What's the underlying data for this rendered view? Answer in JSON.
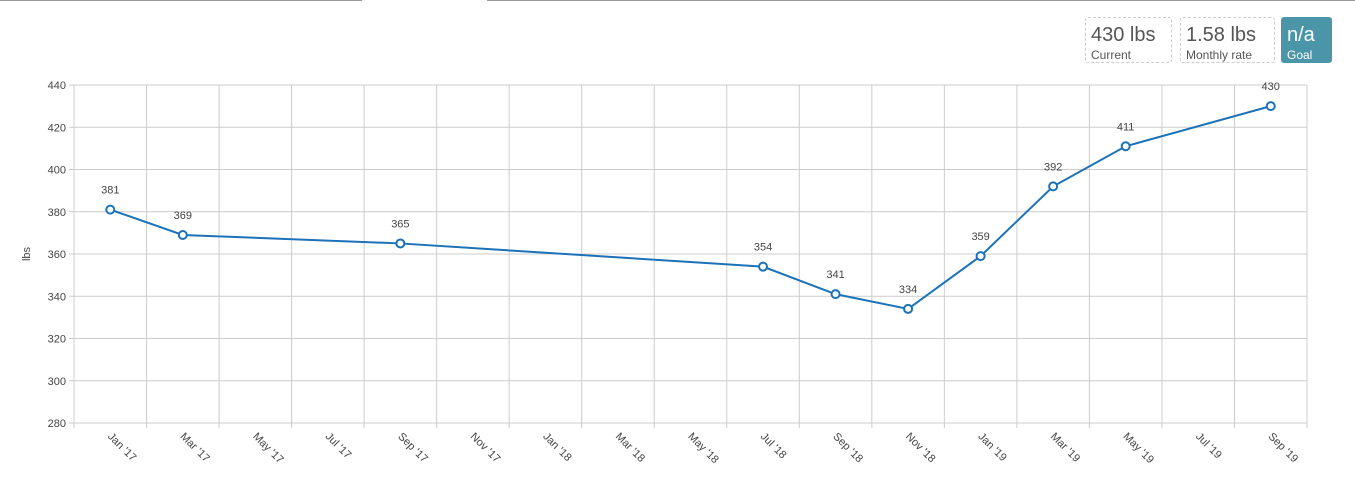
{
  "stats": [
    {
      "value": "430 lbs",
      "label": "Current"
    },
    {
      "value": "1.58 lbs",
      "label": "Monthly rate"
    },
    {
      "value": "n/a",
      "label": "Goal"
    }
  ],
  "chart_data": {
    "type": "line",
    "y_label": "lbs",
    "x": [
      "Jan '17",
      "Mar '17",
      "Sep '17",
      "Jul '18",
      "Sep '18",
      "Nov '18",
      "Jan '19",
      "Mar '19",
      "May '19",
      "Sep '19"
    ],
    "values": [
      381,
      369,
      365,
      354,
      341,
      334,
      359,
      392,
      411,
      430
    ],
    "color": "#1c72b8",
    "xticks": [
      "Jan '17",
      "Mar '17",
      "May '17",
      "Jul '17",
      "Sep '17",
      "Nov '17",
      "Jan '18",
      "Mar '18",
      "May '18",
      "Jul '18",
      "Sep '18",
      "Nov '18",
      "Jan '19",
      "Mar '19",
      "May '19",
      "Jul '19",
      "Sep '19"
    ],
    "ylim": [
      280,
      440
    ],
    "yticks": [
      280,
      300,
      320,
      340,
      360,
      380,
      400,
      420,
      440
    ],
    "grid": true
  }
}
